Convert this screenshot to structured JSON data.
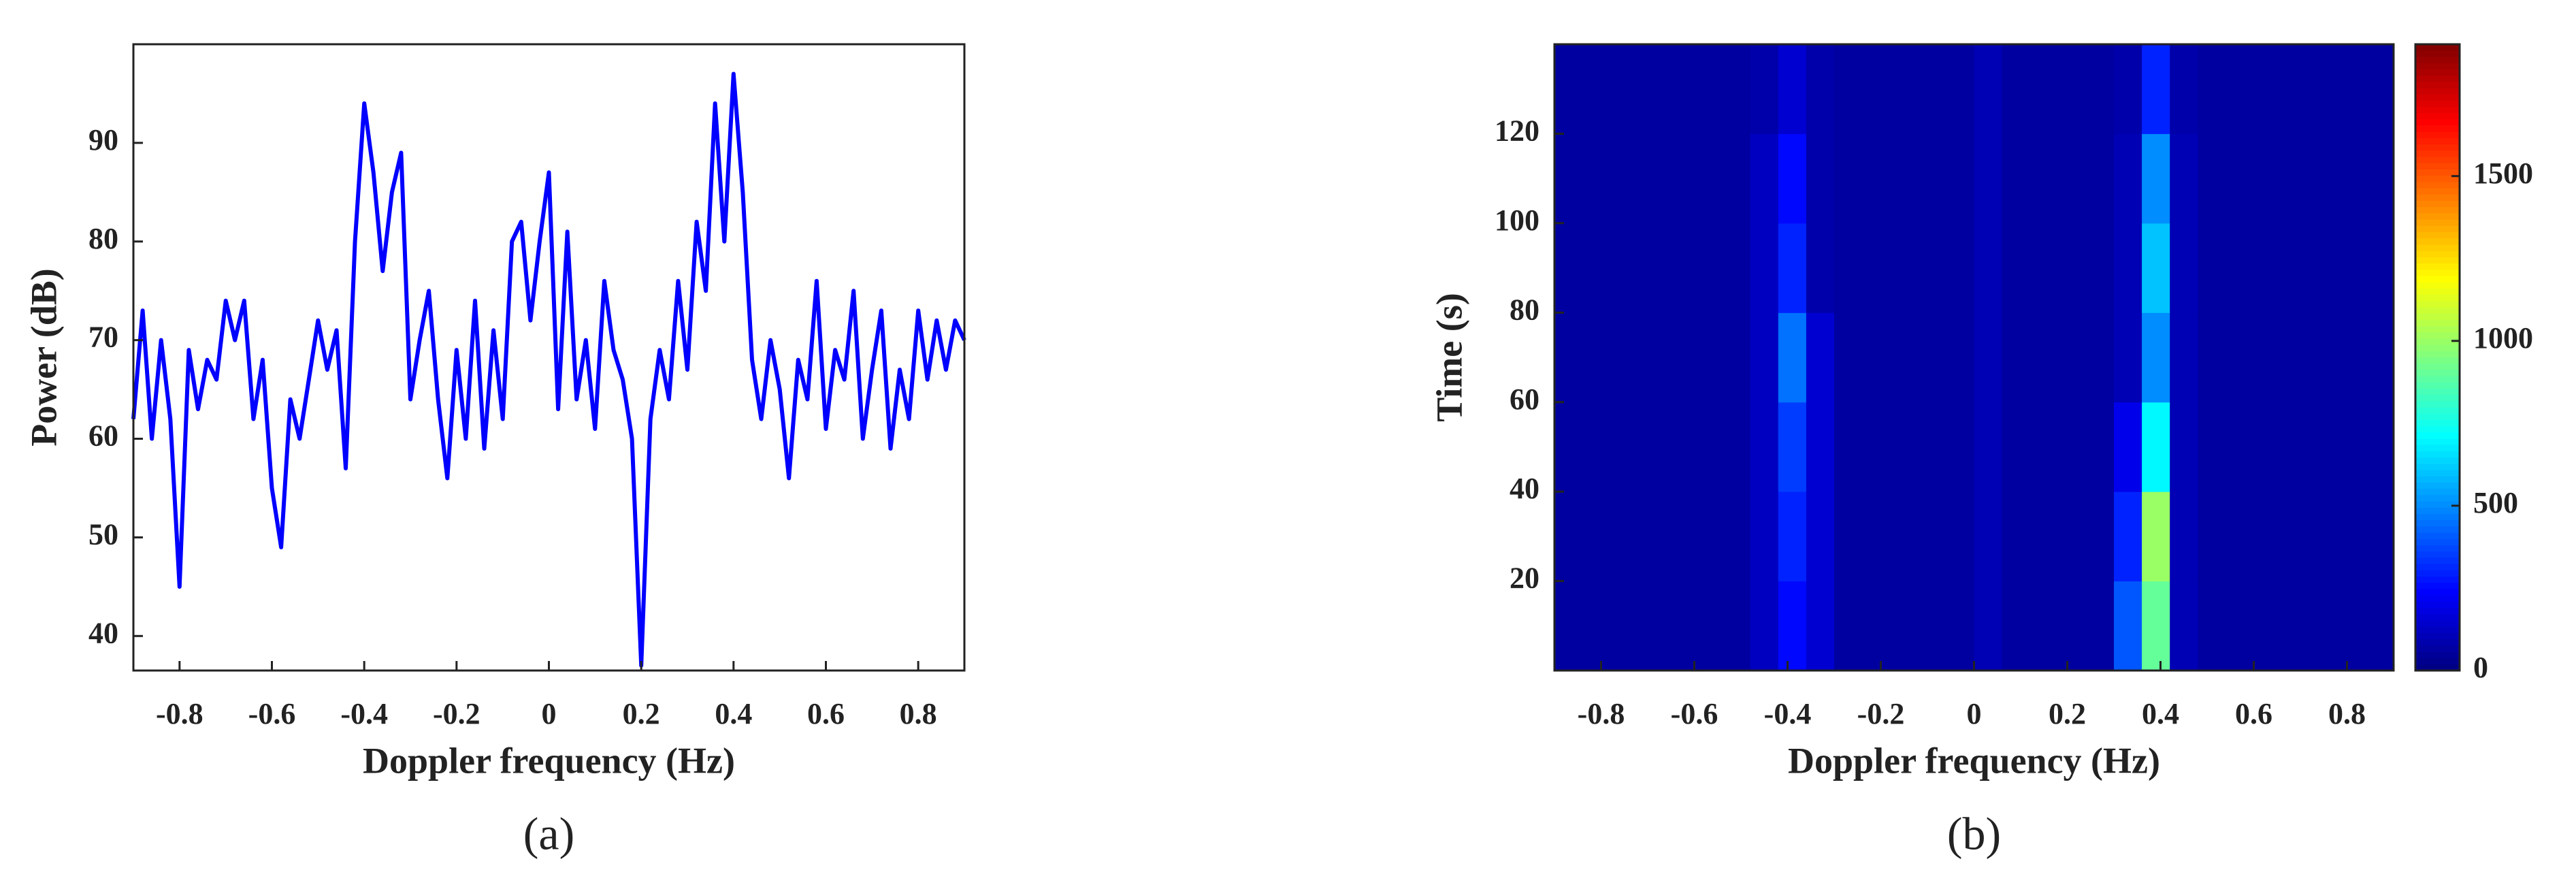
{
  "chart_data": [
    {
      "type": "line",
      "title": "(a)",
      "xlabel": "Doppler frequency (Hz)",
      "ylabel": "Power (dB)",
      "x": [
        -0.9,
        -0.88,
        -0.86,
        -0.84,
        -0.82,
        -0.8,
        -0.78,
        -0.76,
        -0.74,
        -0.72,
        -0.7,
        -0.68,
        -0.66,
        -0.64,
        -0.62,
        -0.6,
        -0.58,
        -0.56,
        -0.54,
        -0.52,
        -0.5,
        -0.48,
        -0.46,
        -0.44,
        -0.42,
        -0.4,
        -0.38,
        -0.36,
        -0.34,
        -0.32,
        -0.3,
        -0.28,
        -0.26,
        -0.24,
        -0.22,
        -0.2,
        -0.18,
        -0.16,
        -0.14,
        -0.12,
        -0.1,
        -0.08,
        -0.06,
        -0.04,
        -0.02,
        0,
        0.02,
        0.04,
        0.06,
        0.08,
        0.1,
        0.12,
        0.14,
        0.16,
        0.18,
        0.2,
        0.22,
        0.24,
        0.26,
        0.28,
        0.3,
        0.32,
        0.34,
        0.36,
        0.38,
        0.4,
        0.42,
        0.44,
        0.46,
        0.48,
        0.5,
        0.52,
        0.54,
        0.56,
        0.58,
        0.6,
        0.62,
        0.64,
        0.66,
        0.68,
        0.7,
        0.72,
        0.74,
        0.76,
        0.78,
        0.8,
        0.82,
        0.84,
        0.86,
        0.88,
        0.9
      ],
      "values": [
        62,
        73,
        60,
        70,
        62,
        45,
        69,
        63,
        68,
        66,
        74,
        70,
        74,
        62,
        68,
        55,
        49,
        64,
        60,
        66,
        72,
        67,
        71,
        57,
        80,
        94,
        87,
        77,
        85,
        89,
        64,
        70,
        75,
        64,
        56,
        69,
        60,
        74,
        59,
        71,
        62,
        80,
        82,
        72,
        80,
        87,
        63,
        81,
        64,
        70,
        61,
        76,
        69,
        66,
        60,
        37,
        62,
        69,
        64,
        76,
        67,
        82,
        75,
        94,
        80,
        97,
        85,
        68,
        62,
        70,
        65,
        56,
        68,
        64,
        76,
        61,
        69,
        66,
        75,
        60,
        67,
        73,
        59,
        67,
        62,
        73,
        66,
        72,
        67,
        72,
        70
      ],
      "color": "#0000ff",
      "xlim": [
        -0.9,
        0.9
      ],
      "xticks": [
        -0.8,
        -0.6,
        -0.4,
        -0.2,
        0,
        0.2,
        0.4,
        0.6,
        0.8
      ],
      "ylim": [
        36.5,
        100
      ],
      "yticks": [
        40,
        50,
        60,
        70,
        80,
        90
      ]
    },
    {
      "type": "heatmap",
      "title": "(b)",
      "xlabel": "Doppler frequency (Hz)",
      "ylabel": "Time (s)",
      "xbins": [
        -0.9,
        -0.84,
        -0.78,
        -0.72,
        -0.66,
        -0.6,
        -0.54,
        -0.48,
        -0.42,
        -0.36,
        -0.3,
        -0.24,
        -0.18,
        -0.12,
        -0.06,
        0,
        0.06,
        0.12,
        0.18,
        0.24,
        0.3,
        0.36,
        0.42,
        0.48,
        0.54,
        0.6,
        0.66,
        0.72,
        0.78,
        0.84,
        0.9
      ],
      "ybins": [
        0,
        20,
        40,
        60,
        80,
        100,
        120,
        140
      ],
      "z": [
        [
          60,
          60,
          60,
          60,
          60,
          60,
          60,
          120,
          250,
          150,
          60,
          60,
          60,
          60,
          60,
          100,
          60,
          60,
          60,
          60,
          400,
          900,
          100,
          60,
          60,
          60,
          60,
          60,
          60,
          60
        ],
        [
          60,
          60,
          60,
          60,
          60,
          60,
          60,
          120,
          300,
          150,
          60,
          60,
          60,
          60,
          60,
          100,
          60,
          60,
          60,
          60,
          300,
          1000,
          100,
          60,
          60,
          60,
          60,
          60,
          60,
          60
        ],
        [
          60,
          60,
          60,
          60,
          60,
          60,
          60,
          120,
          350,
          150,
          60,
          60,
          60,
          60,
          60,
          100,
          60,
          60,
          60,
          60,
          200,
          700,
          100,
          60,
          60,
          60,
          60,
          60,
          60,
          60
        ],
        [
          60,
          60,
          60,
          60,
          60,
          60,
          60,
          120,
          450,
          150,
          60,
          60,
          60,
          60,
          60,
          100,
          60,
          60,
          60,
          60,
          100,
          500,
          100,
          60,
          60,
          60,
          60,
          60,
          60,
          60
        ],
        [
          60,
          60,
          60,
          60,
          60,
          60,
          60,
          120,
          300,
          80,
          60,
          60,
          60,
          60,
          60,
          100,
          60,
          60,
          60,
          60,
          100,
          600,
          100,
          60,
          60,
          60,
          60,
          60,
          60,
          60
        ],
        [
          60,
          60,
          60,
          60,
          60,
          60,
          60,
          120,
          250,
          80,
          60,
          60,
          60,
          60,
          60,
          100,
          60,
          60,
          60,
          60,
          100,
          500,
          100,
          60,
          60,
          60,
          60,
          60,
          60,
          60
        ],
        [
          60,
          60,
          60,
          60,
          60,
          60,
          60,
          80,
          150,
          80,
          60,
          60,
          60,
          60,
          60,
          100,
          60,
          60,
          60,
          60,
          80,
          300,
          80,
          60,
          60,
          60,
          60,
          60,
          60,
          60
        ]
      ],
      "xlim": [
        -0.9,
        0.9
      ],
      "xticks": [
        -0.8,
        -0.6,
        -0.4,
        -0.2,
        0,
        0.2,
        0.4,
        0.6,
        0.8
      ],
      "ylim": [
        0,
        140
      ],
      "yticks": [
        20,
        40,
        60,
        80,
        100,
        120
      ],
      "colormap": "jet",
      "clim": [
        0,
        1900
      ],
      "cticks": [
        0,
        500,
        1000,
        1500
      ]
    }
  ]
}
